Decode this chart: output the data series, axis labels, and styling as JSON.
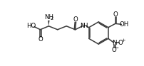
{
  "bg_color": "#ffffff",
  "line_color": "#3a3a3a",
  "line_width": 1.1,
  "font_size": 6.2,
  "fig_width": 2.02,
  "fig_height": 0.93,
  "dpi": 100,
  "xlim": [
    0,
    10.5
  ],
  "ylim": [
    0,
    4.8
  ]
}
